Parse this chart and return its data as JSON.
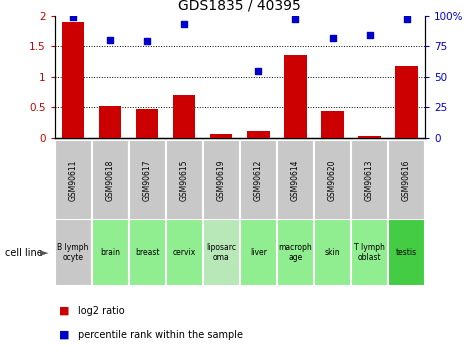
{
  "title": "GDS1835 / 40395",
  "samples": [
    "GSM90611",
    "GSM90618",
    "GSM90617",
    "GSM90615",
    "GSM90619",
    "GSM90612",
    "GSM90614",
    "GSM90620",
    "GSM90613",
    "GSM90616"
  ],
  "cell_lines": [
    "B lymph\nocyte",
    "brain",
    "breast",
    "cervix",
    "liposarc\noma",
    "liver",
    "macroph\nage",
    "skin",
    "T lymph\noblast",
    "testis"
  ],
  "log2_ratio": [
    1.9,
    0.52,
    0.47,
    0.7,
    0.06,
    0.12,
    1.36,
    0.44,
    0.03,
    1.18
  ],
  "pct_x": [
    0,
    1,
    2,
    3,
    5,
    6,
    7,
    8,
    9
  ],
  "pct_y": [
    99,
    80,
    79,
    93,
    55,
    97,
    82,
    84,
    97
  ],
  "bar_color": "#cc0000",
  "dot_color": "#0000cc",
  "gsm_bg_color": "#c8c8c8",
  "cell_line_colors": [
    "#c8c8c8",
    "#90ee90",
    "#90ee90",
    "#90ee90",
    "#b8e8b8",
    "#90ee90",
    "#90ee90",
    "#90ee90",
    "#90ee90",
    "#44cc44"
  ],
  "ylim_left": [
    0,
    2
  ],
  "ylim_right": [
    0,
    100
  ],
  "yticks_left": [
    0,
    0.5,
    1.0,
    1.5,
    2.0
  ],
  "yticks_right": [
    0,
    25,
    50,
    75,
    100
  ],
  "ytick_labels_left": [
    "0",
    "0.5",
    "1",
    "1.5",
    "2"
  ],
  "ytick_labels_right": [
    "0",
    "25",
    "50",
    "75",
    "100%"
  ],
  "legend_log2": "log2 ratio",
  "legend_pct": "percentile rank within the sample",
  "cell_line_label": "cell line"
}
